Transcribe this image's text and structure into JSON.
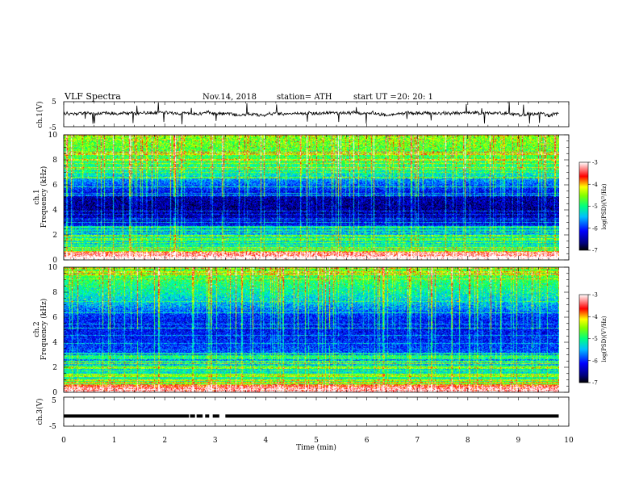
{
  "header": {
    "title": "VLF  Spectra",
    "date": "Nov.14, 2018",
    "station": "station= ATH",
    "start_label": "start  UT  =",
    "start_time": "20: 20: 1"
  },
  "chart_data": [
    {
      "type": "line",
      "panel": "ch1_waveform",
      "ylabel": "ch.1(V)",
      "ylim": [
        -5,
        5
      ],
      "ytick_labels": [
        "5",
        "-5"
      ],
      "x_range_min": [
        0,
        9.8
      ],
      "baseline_v": 0.3,
      "noise_amplitude_v": 1.2,
      "spike_amplitude_v": 4.5,
      "color": "#000000"
    },
    {
      "type": "heatmap",
      "panel": "ch1_spectrogram",
      "ylabel_line1": "ch.1",
      "ylabel_line2": "Frequency  (kHz)",
      "ylim": [
        0,
        10
      ],
      "ytick_labels": [
        "0",
        "2",
        "4",
        "6",
        "8",
        "10"
      ],
      "x_range_min": [
        0,
        9.8
      ],
      "colorbar": {
        "label": "log(PSD)(V²/Hz)",
        "range": [
          -7,
          -3
        ],
        "tick_labels": [
          "-3",
          "-4",
          "-5",
          "-6",
          "-7"
        ]
      },
      "level_profile_logpsd": [
        [
          0.0,
          -3.9
        ],
        [
          0.4,
          -4.6
        ],
        [
          0.8,
          -5.0
        ],
        [
          1.2,
          -5.4
        ],
        [
          1.8,
          -5.3
        ],
        [
          2.2,
          -5.7
        ],
        [
          2.6,
          -6.0
        ],
        [
          3.0,
          -6.4
        ],
        [
          4.0,
          -6.6
        ],
        [
          5.0,
          -6.5
        ],
        [
          5.6,
          -6.1
        ],
        [
          6.2,
          -5.8
        ],
        [
          7.0,
          -5.2
        ],
        [
          8.0,
          -4.9
        ],
        [
          9.0,
          -4.7
        ],
        [
          10.0,
          -4.5
        ]
      ]
    },
    {
      "type": "heatmap",
      "panel": "ch2_spectrogram",
      "ylabel_line1": "ch.2",
      "ylabel_line2": "Frequency  (kHz)",
      "ylim": [
        0,
        10
      ],
      "ytick_labels": [
        "0",
        "2",
        "4",
        "6",
        "8",
        "10"
      ],
      "x_range_min": [
        0,
        9.8
      ],
      "colorbar": {
        "label": "log(PSD)(V²/Hz)",
        "range": [
          -7,
          -3
        ],
        "tick_labels": [
          "-3",
          "-4",
          "-5",
          "-6",
          "-7"
        ]
      },
      "level_profile_logpsd": [
        [
          0.0,
          -4.2
        ],
        [
          0.4,
          -4.8
        ],
        [
          0.8,
          -5.0
        ],
        [
          1.2,
          -5.2
        ],
        [
          1.8,
          -5.4
        ],
        [
          2.4,
          -5.6
        ],
        [
          3.0,
          -5.9
        ],
        [
          4.0,
          -6.1
        ],
        [
          5.0,
          -6.2
        ],
        [
          6.0,
          -6.1
        ],
        [
          7.0,
          -5.6
        ],
        [
          8.0,
          -5.2
        ],
        [
          9.0,
          -4.9
        ],
        [
          10.0,
          -4.7
        ]
      ]
    },
    {
      "type": "line",
      "panel": "ch3_waveform",
      "ylabel": "ch.3(V)",
      "ylim": [
        -5,
        5
      ],
      "ytick_labels": [
        "5",
        "-5"
      ],
      "x_range_min": [
        0,
        9.8
      ],
      "level_v": -1.5,
      "dropouts_min": [
        [
          2.48,
          2.5
        ],
        [
          2.6,
          2.63
        ],
        [
          2.75,
          2.8
        ],
        [
          2.88,
          2.95
        ],
        [
          3.08,
          3.2
        ]
      ],
      "color": "#000000"
    }
  ],
  "x_axis": {
    "label": "Time  (min)",
    "tick_labels": [
      "0",
      "1",
      "2",
      "3",
      "4",
      "5",
      "6",
      "7",
      "8",
      "9",
      "10"
    ],
    "range": [
      0,
      10
    ]
  }
}
